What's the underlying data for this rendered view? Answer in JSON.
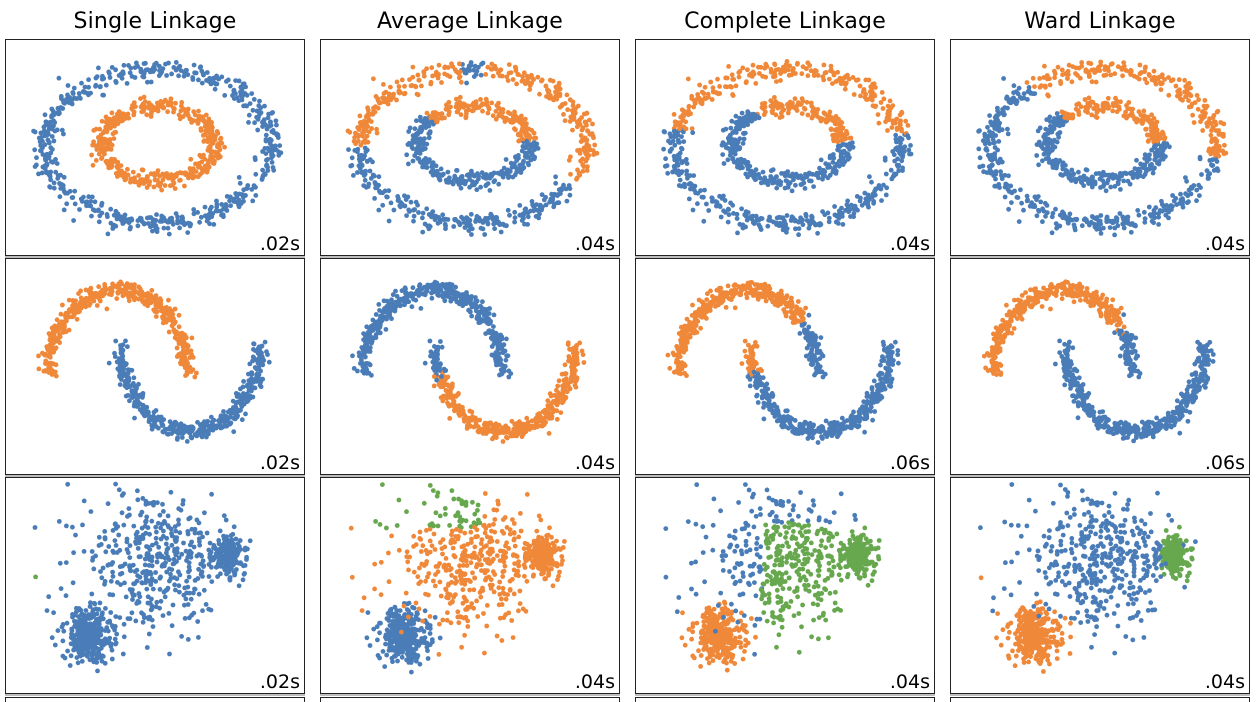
{
  "colors": {
    "blue": "#4a7db8",
    "orange": "#f0883a",
    "green": "#67a84e"
  },
  "titles": [
    "Single Linkage",
    "Average Linkage",
    "Complete Linkage",
    "Ward Linkage"
  ],
  "chart_data": [
    {
      "type": "scatter",
      "dataset": "circles",
      "panels": [
        {
          "linkage": "Single Linkage",
          "time": ".02s",
          "split": "single"
        },
        {
          "linkage": "Average Linkage",
          "time": ".04s",
          "split": "outer-upper-orange"
        },
        {
          "linkage": "Complete Linkage",
          "time": ".04s",
          "split": "outer-upper-orange-b"
        },
        {
          "linkage": "Ward Linkage",
          "time": ".04s",
          "split": "outer-upper-orange-c"
        }
      ]
    },
    {
      "type": "scatter",
      "dataset": "moons",
      "panels": [
        {
          "linkage": "Single Linkage",
          "time": ".02s",
          "split": "clean"
        },
        {
          "linkage": "Average Linkage",
          "time": ".04s",
          "split": "lower-orange"
        },
        {
          "linkage": "Complete Linkage",
          "time": ".06s",
          "split": "cut-mid"
        },
        {
          "linkage": "Ward Linkage",
          "time": ".06s",
          "split": "cut-tip"
        }
      ]
    },
    {
      "type": "scatter",
      "dataset": "blobs",
      "panels": [
        {
          "linkage": "Single Linkage",
          "time": ".02s",
          "split": "all-blue"
        },
        {
          "linkage": "Average Linkage",
          "time": ".04s",
          "split": "blue-orange-green"
        },
        {
          "linkage": "Complete Linkage",
          "time": ".04s",
          "split": "orange-green"
        },
        {
          "linkage": "Ward Linkage",
          "time": ".04s",
          "split": "ward"
        }
      ]
    }
  ]
}
